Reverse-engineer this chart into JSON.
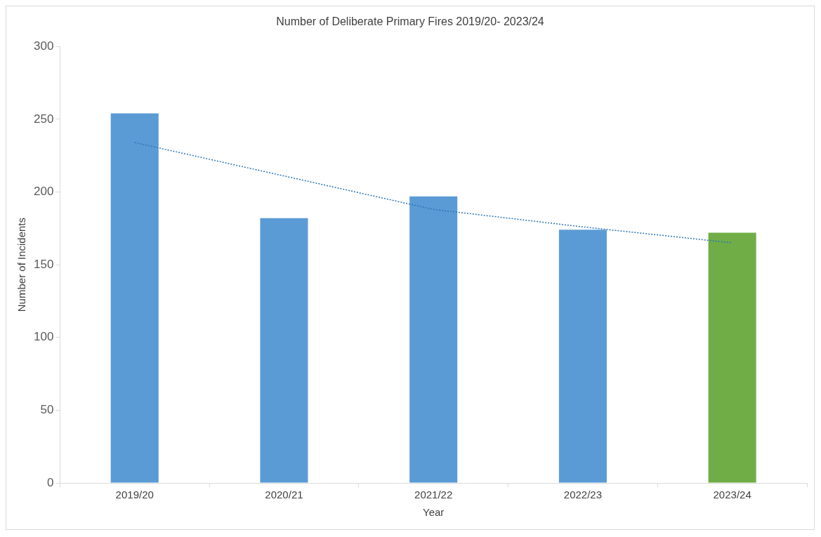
{
  "chart_data": {
    "type": "bar",
    "title": "Number of Deliberate Primary Fires 2019/20- 2023/24",
    "xlabel": "Year",
    "ylabel": "Number of Incidents",
    "categories": [
      "2019/20",
      "2020/21",
      "2021/22",
      "2022/23",
      "2023/24"
    ],
    "series": [
      {
        "values": [
          254,
          182,
          197,
          174,
          172
        ],
        "colors": [
          "#5b9bd5",
          "#5b9bd5",
          "#5b9bd5",
          "#5b9bd5",
          "#70ad47"
        ]
      },
      {
        "type": "line",
        "x": [
          "2019/20",
          "2020/21",
          "2021/22",
          "2022/23",
          "2023/24"
        ],
        "values": [
          234,
          211,
          188,
          176,
          165
        ],
        "color": "#2e75b6",
        "line_style": "dotted",
        "marker": "none"
      }
    ],
    "ylim": [
      0,
      300
    ],
    "yticks": [
      0,
      50,
      100,
      150,
      200,
      250,
      300
    ],
    "grid": false,
    "legend": false
  }
}
